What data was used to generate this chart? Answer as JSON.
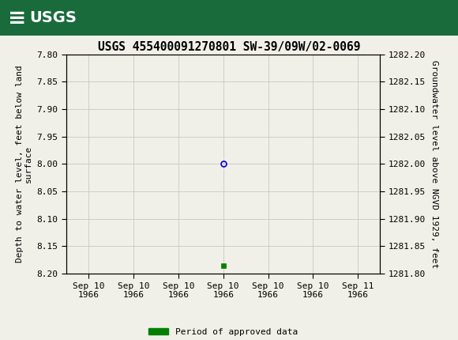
{
  "title": "USGS 455400091270801 SW-39/09W/02-0069",
  "ylabel_left": "Depth to water level, feet below land\nsurface",
  "ylabel_right": "Groundwater level above NGVD 1929, feet",
  "ylim_left": [
    7.8,
    8.2
  ],
  "ylim_right": [
    1281.8,
    1282.2
  ],
  "y_ticks_left": [
    7.8,
    7.85,
    7.9,
    7.95,
    8.0,
    8.05,
    8.1,
    8.15,
    8.2
  ],
  "y_ticks_right": [
    1281.8,
    1281.85,
    1281.9,
    1281.95,
    1282.0,
    1282.05,
    1282.1,
    1282.15,
    1282.2
  ],
  "x_tick_labels": [
    "Sep 10\n1966",
    "Sep 10\n1966",
    "Sep 10\n1966",
    "Sep 10\n1966",
    "Sep 10\n1966",
    "Sep 10\n1966",
    "Sep 11\n1966"
  ],
  "x_tick_positions": [
    0,
    1,
    2,
    3,
    4,
    5,
    6
  ],
  "xlim": [
    -0.5,
    6.5
  ],
  "data_point_x": 3.0,
  "data_point_y": 8.0,
  "data_point_color": "#0000cc",
  "data_point2_x": 3.0,
  "data_point2_y": 8.185,
  "data_point2_color": "#008000",
  "header_color": "#1a6b3c",
  "background_color": "#f0f0e8",
  "grid_color": "#c8c8c8",
  "font_family": "monospace",
  "legend_label": "Period of approved data",
  "legend_color": "#008000",
  "title_fontsize": 10.5,
  "axis_label_fontsize": 8,
  "tick_fontsize": 8
}
